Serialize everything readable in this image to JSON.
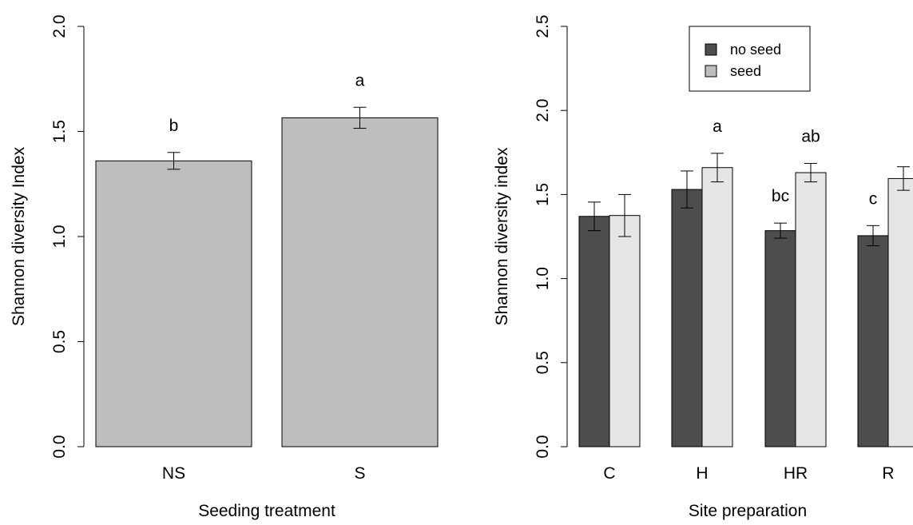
{
  "chart_data": [
    {
      "type": "bar",
      "categories": [
        "NS",
        "S"
      ],
      "values": [
        1.36,
        1.565
      ],
      "errors": [
        0.04,
        0.05
      ],
      "significance_letters": [
        "b",
        "a"
      ],
      "xlabel": "Seeding treatment",
      "ylabel": "Shannon diversity Index",
      "ylim": [
        0,
        2.0
      ],
      "yticks": [
        "0.0",
        "0.5",
        "1.0",
        "1.5",
        "2.0"
      ],
      "bar_color": "#bebebe",
      "grid": false
    },
    {
      "type": "bar",
      "categories": [
        "C",
        "H",
        "HR",
        "R"
      ],
      "series": [
        {
          "name": "no seed",
          "color": "#4d4d4d",
          "values": [
            1.37,
            1.53,
            1.285,
            1.255
          ],
          "errors": [
            0.085,
            0.11,
            0.045,
            0.06
          ]
        },
        {
          "name": "seed",
          "color": "#e6e6e6",
          "values": [
            1.375,
            1.66,
            1.63,
            1.595
          ],
          "errors": [
            0.125,
            0.085,
            0.055,
            0.07
          ]
        }
      ],
      "significance_letters": [
        {
          "category": "H",
          "series": "seed",
          "text": "a"
        },
        {
          "category": "HR",
          "series": "no seed",
          "text": "bc"
        },
        {
          "category": "HR",
          "series": "seed",
          "text": "ab"
        },
        {
          "category": "R",
          "series": "no seed",
          "text": "c"
        }
      ],
      "xlabel": "Site preparation",
      "ylabel": "Shannon diversity index",
      "ylim": [
        0,
        2.5
      ],
      "yticks": [
        "0.0",
        "0.5",
        "1.0",
        "1.5",
        "2.0",
        "2.5"
      ],
      "legend": {
        "position": "top-left",
        "entries": [
          "no seed",
          "seed"
        ]
      },
      "grid": false
    }
  ]
}
